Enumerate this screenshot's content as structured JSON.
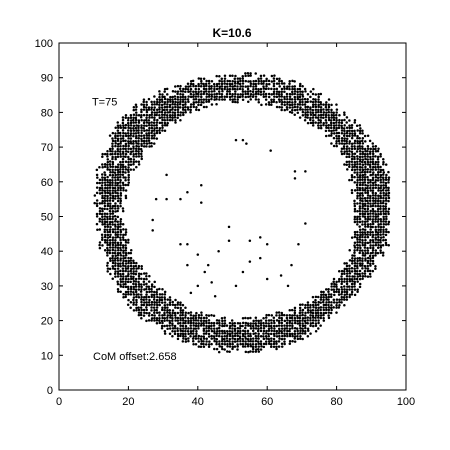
{
  "chart_data": {
    "type": "scatter",
    "title": "K=10.6",
    "xlabel": "",
    "ylabel": "",
    "xlim": [
      0,
      100
    ],
    "ylim": [
      0,
      100
    ],
    "xticks": [
      0,
      20,
      40,
      60,
      80,
      100
    ],
    "yticks": [
      0,
      10,
      20,
      30,
      40,
      50,
      60,
      70,
      80,
      90,
      100
    ],
    "grid": false,
    "marker_color": "#000000",
    "annotations": [
      {
        "id": "time",
        "text": "T=75",
        "x": 9.5,
        "y": 83.2
      },
      {
        "id": "com",
        "text": "CoM offset:2.658",
        "x": 9.8,
        "y": 9.8
      }
    ],
    "ring": {
      "center": [
        52.5,
        51.5
      ],
      "inner_radius": [
        33.0,
        31.0
      ],
      "outer_radius": [
        43.5,
        40.5
      ],
      "grid_step": 0.75
    },
    "interior_points": [
      [
        51,
        72
      ],
      [
        53,
        72
      ],
      [
        54,
        71
      ],
      [
        61,
        69
      ],
      [
        68,
        63
      ],
      [
        71,
        63
      ],
      [
        68,
        61
      ],
      [
        37,
        57
      ],
      [
        31,
        62
      ],
      [
        41,
        59
      ],
      [
        35,
        55
      ],
      [
        41,
        54
      ],
      [
        31,
        55
      ],
      [
        28,
        55
      ],
      [
        27,
        49
      ],
      [
        27,
        46
      ],
      [
        35,
        42
      ],
      [
        37,
        42
      ],
      [
        37,
        36
      ],
      [
        40,
        39
      ],
      [
        42,
        34
      ],
      [
        46,
        40
      ],
      [
        49,
        47
      ],
      [
        49,
        43
      ],
      [
        55,
        43
      ],
      [
        58,
        44
      ],
      [
        60,
        42
      ],
      [
        58,
        38
      ],
      [
        55,
        37
      ],
      [
        53,
        34
      ],
      [
        51,
        30
      ],
      [
        64,
        33
      ],
      [
        67,
        36
      ],
      [
        71,
        48
      ],
      [
        69,
        42
      ],
      [
        40,
        30
      ],
      [
        44,
        31
      ],
      [
        60,
        32
      ],
      [
        45,
        27
      ],
      [
        38,
        28
      ],
      [
        43,
        36
      ],
      [
        66,
        30
      ]
    ]
  }
}
